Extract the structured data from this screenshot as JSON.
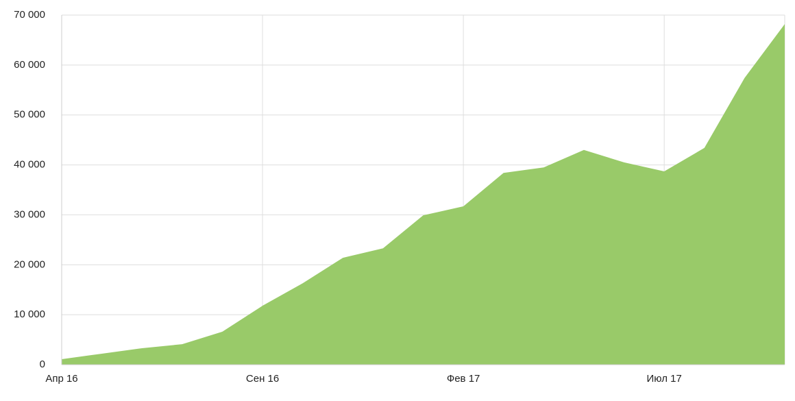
{
  "chart_data": {
    "type": "area",
    "categories": [
      "Апр 16",
      null,
      null,
      null,
      null,
      "Сен 16",
      null,
      null,
      null,
      null,
      "Фев 17",
      null,
      null,
      null,
      null,
      "Июл 17",
      null,
      null,
      null
    ],
    "series": [
      {
        "color": "#97c966",
        "values": [
          1100,
          2200,
          3300,
          4100,
          6600,
          11800,
          16300,
          21400,
          23300,
          29900,
          31700,
          38400,
          39500,
          43000,
          40500,
          38700,
          43400,
          57400,
          68200
        ]
      }
    ],
    "ylim": [
      0,
      70000
    ],
    "yticks": [
      0,
      {
        "value": 10000,
        "label": "10 000"
      },
      {
        "value": 20000,
        "label": "20 000"
      },
      {
        "value": 30000,
        "label": "30 000"
      },
      {
        "value": 40000,
        "label": "40 000"
      },
      {
        "value": 50000,
        "label": "50 000"
      },
      {
        "value": 60000,
        "label": "60 000"
      },
      {
        "value": 70000,
        "label": "70 000"
      }
    ],
    "grid": true
  }
}
